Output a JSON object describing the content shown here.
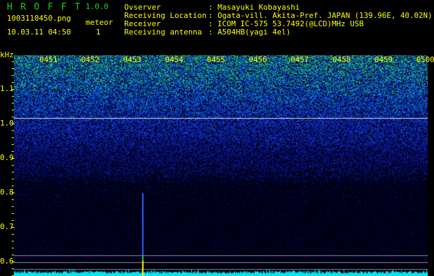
{
  "app": {
    "name": "H R O F F T",
    "version": "1.0.0"
  },
  "file": {
    "name": "1003110450.png",
    "datetime": "10.03.11 04:50"
  },
  "meteor": {
    "label": "meteor",
    "count": "1"
  },
  "info": [
    {
      "label": "Ovserver",
      "value": "Masayuki Kobayashi"
    },
    {
      "label": "Receiving Location",
      "value": "Ogata-vill. Akita-Pref. JAPAN (139.96E, 40.02N)"
    },
    {
      "label": "Receiver",
      "value": "ICOM IC-575 53.7492(@LCD)MHz USB"
    },
    {
      "label": "Receiving antenna",
      "value": "A504HB(yagi 4el)"
    }
  ],
  "spectrogram": {
    "y_unit": "kHz",
    "y_labels": [
      "1.1",
      "1.0",
      "0.9",
      "0.8",
      "0.7",
      "0.6"
    ],
    "time_labels": [
      "0451",
      "0452",
      "0453",
      "0454",
      "0455",
      "0456",
      "0457",
      "0458",
      "0459",
      "0500"
    ],
    "meteor_times": [
      "0453"
    ],
    "colors": {
      "label": "#ffff00",
      "title": "#22cc22",
      "baseline": "#00e5ee"
    }
  }
}
